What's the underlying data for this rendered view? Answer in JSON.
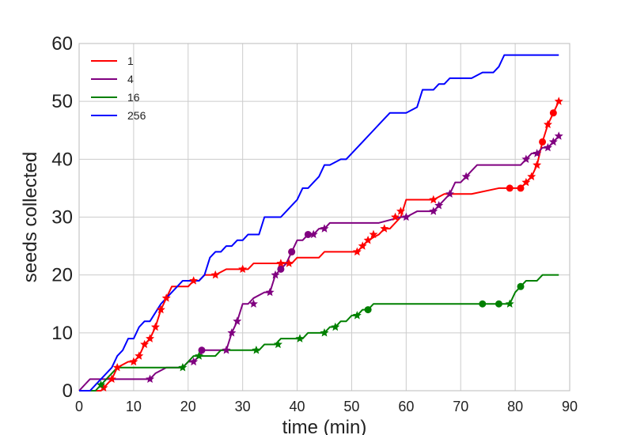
{
  "chart_data": {
    "type": "line",
    "title": "",
    "xlabel": "time (min)",
    "ylabel": "seeds collected",
    "xlim": [
      0,
      90
    ],
    "ylim": [
      0,
      60
    ],
    "xticks": [
      0,
      10,
      20,
      30,
      40,
      50,
      60,
      70,
      80,
      90
    ],
    "yticks": [
      0,
      10,
      20,
      30,
      40,
      50,
      60
    ],
    "grid": true,
    "legend_position": "top-left",
    "series": [
      {
        "name": "1",
        "color": "#ff0000",
        "x": [
          0,
          2,
          4,
          5,
          6,
          7,
          9,
          10,
          11,
          12,
          13,
          14,
          15,
          16,
          17,
          20,
          21,
          22,
          23,
          25,
          27,
          30,
          31,
          32,
          37,
          38,
          39,
          40,
          42,
          44,
          45,
          48,
          50,
          51,
          52,
          53,
          55,
          56,
          57,
          58,
          59,
          60,
          64,
          65,
          67,
          70,
          72,
          77,
          79,
          80,
          81,
          82,
          83,
          84,
          85,
          86,
          87,
          88
        ],
        "y": [
          0,
          0,
          0,
          1,
          2,
          4,
          5,
          5,
          6,
          8,
          9,
          11,
          14,
          16,
          18,
          18,
          19,
          19,
          20,
          20,
          21,
          21,
          21,
          22,
          22,
          22,
          22,
          23,
          23,
          23,
          24,
          24,
          24,
          24,
          25,
          26,
          27,
          28,
          28,
          29,
          30,
          33,
          33,
          33,
          34,
          34,
          34,
          35,
          35,
          35,
          35,
          36,
          37,
          39,
          43,
          46,
          48,
          50
        ],
        "markers": [
          {
            "x": 4.5,
            "y": 0.5,
            "shape": "star"
          },
          {
            "x": 6,
            "y": 2,
            "shape": "star"
          },
          {
            "x": 7,
            "y": 4,
            "shape": "star"
          },
          {
            "x": 10,
            "y": 5,
            "shape": "star"
          },
          {
            "x": 11,
            "y": 6,
            "shape": "star"
          },
          {
            "x": 12,
            "y": 8,
            "shape": "star"
          },
          {
            "x": 13,
            "y": 9,
            "shape": "star"
          },
          {
            "x": 14,
            "y": 11,
            "shape": "star"
          },
          {
            "x": 15,
            "y": 14,
            "shape": "star"
          },
          {
            "x": 16,
            "y": 16,
            "shape": "star"
          },
          {
            "x": 21,
            "y": 19,
            "shape": "star"
          },
          {
            "x": 25,
            "y": 20,
            "shape": "star"
          },
          {
            "x": 30,
            "y": 21,
            "shape": "star"
          },
          {
            "x": 37,
            "y": 22,
            "shape": "star"
          },
          {
            "x": 38.5,
            "y": 22,
            "shape": "star"
          },
          {
            "x": 39,
            "y": 24,
            "shape": "circle"
          },
          {
            "x": 51,
            "y": 24,
            "shape": "star"
          },
          {
            "x": 52,
            "y": 25,
            "shape": "star"
          },
          {
            "x": 53,
            "y": 26,
            "shape": "star"
          },
          {
            "x": 54,
            "y": 27,
            "shape": "star"
          },
          {
            "x": 56,
            "y": 28,
            "shape": "star"
          },
          {
            "x": 58,
            "y": 30,
            "shape": "star"
          },
          {
            "x": 59,
            "y": 31,
            "shape": "star"
          },
          {
            "x": 65,
            "y": 33,
            "shape": "star"
          },
          {
            "x": 79,
            "y": 35,
            "shape": "circle"
          },
          {
            "x": 81,
            "y": 35,
            "shape": "circle"
          },
          {
            "x": 82,
            "y": 36,
            "shape": "star"
          },
          {
            "x": 83,
            "y": 37,
            "shape": "star"
          },
          {
            "x": 84,
            "y": 39,
            "shape": "star"
          },
          {
            "x": 85,
            "y": 43,
            "shape": "circle"
          },
          {
            "x": 86,
            "y": 46,
            "shape": "star"
          },
          {
            "x": 87,
            "y": 48,
            "shape": "circle"
          },
          {
            "x": 88,
            "y": 50,
            "shape": "star"
          }
        ]
      },
      {
        "name": "4",
        "color": "#800080",
        "x": [
          0,
          2,
          4,
          8,
          13,
          14,
          16,
          19,
          20,
          21,
          22,
          23,
          26,
          27,
          28,
          29,
          30,
          31,
          32,
          34,
          35,
          36,
          37,
          38,
          39,
          40,
          41,
          42,
          43,
          44,
          45,
          46,
          50,
          55,
          59,
          60,
          62,
          64,
          65,
          66,
          67,
          68,
          69,
          70,
          71,
          72,
          73,
          74,
          76,
          80,
          81,
          82,
          83,
          84,
          85,
          86,
          87,
          88
        ],
        "y": [
          0,
          2,
          2,
          2,
          2,
          3,
          4,
          4,
          5,
          5,
          6,
          7,
          7,
          7,
          10,
          12,
          15,
          15,
          16,
          17,
          17,
          20,
          21,
          22,
          24,
          26,
          26,
          27,
          27,
          28,
          28,
          29,
          29,
          29,
          30,
          30,
          31,
          31,
          31,
          32,
          33,
          34,
          36,
          36,
          37,
          38,
          39,
          39,
          39,
          39,
          39,
          40,
          41,
          41,
          42,
          42,
          43,
          44
        ],
        "markers": [
          {
            "x": 13,
            "y": 2,
            "shape": "star"
          },
          {
            "x": 21,
            "y": 5,
            "shape": "star"
          },
          {
            "x": 22.5,
            "y": 7,
            "shape": "circle"
          },
          {
            "x": 27,
            "y": 7,
            "shape": "star"
          },
          {
            "x": 28,
            "y": 10,
            "shape": "star"
          },
          {
            "x": 29,
            "y": 12,
            "shape": "star"
          },
          {
            "x": 32,
            "y": 15,
            "shape": "star"
          },
          {
            "x": 35,
            "y": 17,
            "shape": "star"
          },
          {
            "x": 36,
            "y": 20,
            "shape": "star"
          },
          {
            "x": 37,
            "y": 21,
            "shape": "circle"
          },
          {
            "x": 39,
            "y": 24,
            "shape": "circle"
          },
          {
            "x": 42,
            "y": 27,
            "shape": "circle"
          },
          {
            "x": 43,
            "y": 27,
            "shape": "star"
          },
          {
            "x": 45,
            "y": 28,
            "shape": "star"
          },
          {
            "x": 60,
            "y": 30,
            "shape": "star"
          },
          {
            "x": 65,
            "y": 31,
            "shape": "star"
          },
          {
            "x": 66,
            "y": 32,
            "shape": "star"
          },
          {
            "x": 68,
            "y": 34,
            "shape": "star"
          },
          {
            "x": 71,
            "y": 37,
            "shape": "star"
          },
          {
            "x": 82,
            "y": 40,
            "shape": "star"
          },
          {
            "x": 84,
            "y": 41,
            "shape": "star"
          },
          {
            "x": 86,
            "y": 42,
            "shape": "star"
          },
          {
            "x": 87,
            "y": 43,
            "shape": "star"
          },
          {
            "x": 88,
            "y": 44,
            "shape": "star"
          }
        ]
      },
      {
        "name": "16",
        "color": "#008000",
        "x": [
          0,
          2,
          3,
          4,
          5,
          6,
          7,
          8,
          10,
          12,
          15,
          17,
          19,
          20,
          21,
          22,
          23,
          25,
          26,
          27,
          32,
          33,
          34,
          35,
          36,
          37,
          38,
          39,
          40,
          41,
          42,
          43,
          44,
          45,
          46,
          47,
          48,
          49,
          50,
          51,
          52,
          53,
          54,
          55,
          60,
          70,
          74,
          77,
          79,
          80,
          81,
          82,
          83,
          84,
          85,
          86,
          88
        ],
        "y": [
          0,
          0,
          0,
          1,
          2,
          3,
          4,
          4,
          4,
          4,
          4,
          4,
          4,
          5,
          6,
          6,
          6,
          6,
          7,
          7,
          7,
          7,
          8,
          8,
          8,
          9,
          9,
          9,
          9,
          9,
          10,
          10,
          10,
          10,
          11,
          11,
          12,
          12,
          13,
          13,
          14,
          14,
          15,
          15,
          15,
          15,
          15,
          15,
          15,
          17,
          18,
          19,
          19,
          19,
          20,
          20,
          20
        ],
        "markers": [
          {
            "x": 4,
            "y": 1,
            "shape": "star"
          },
          {
            "x": 19,
            "y": 4,
            "shape": "star"
          },
          {
            "x": 22,
            "y": 6,
            "shape": "star"
          },
          {
            "x": 32.5,
            "y": 7,
            "shape": "star"
          },
          {
            "x": 36.5,
            "y": 8,
            "shape": "star"
          },
          {
            "x": 40.5,
            "y": 9,
            "shape": "star"
          },
          {
            "x": 45,
            "y": 10,
            "shape": "star"
          },
          {
            "x": 47,
            "y": 11,
            "shape": "star"
          },
          {
            "x": 51,
            "y": 13,
            "shape": "star"
          },
          {
            "x": 53,
            "y": 14,
            "shape": "circle"
          },
          {
            "x": 74,
            "y": 15,
            "shape": "circle"
          },
          {
            "x": 77,
            "y": 15,
            "shape": "circle"
          },
          {
            "x": 79,
            "y": 15,
            "shape": "star"
          },
          {
            "x": 81,
            "y": 18,
            "shape": "circle"
          }
        ]
      },
      {
        "name": "256",
        "color": "#0000ff",
        "x": [
          0,
          2,
          3,
          5,
          6,
          7,
          8,
          9,
          10,
          11,
          12,
          13,
          15,
          16,
          17,
          18,
          19,
          20,
          21,
          22,
          23,
          24,
          25,
          26,
          27,
          28,
          29,
          30,
          31,
          32,
          33,
          34,
          35,
          36,
          37,
          38,
          39,
          40,
          41,
          42,
          43,
          44,
          45,
          46,
          48,
          49,
          50,
          52,
          54,
          56,
          57,
          58,
          59,
          60,
          62,
          63,
          64,
          65,
          66,
          67,
          68,
          69,
          70,
          72,
          74,
          75,
          76,
          77,
          78,
          79,
          80,
          88
        ],
        "y": [
          0,
          0,
          1,
          3,
          4,
          6,
          7,
          9,
          9,
          11,
          12,
          12,
          15,
          16,
          17,
          18,
          19,
          19,
          19,
          19,
          20,
          23,
          24,
          24,
          25,
          25,
          26,
          26,
          27,
          27,
          27,
          30,
          30,
          30,
          30,
          31,
          32,
          33,
          35,
          35,
          36,
          37,
          39,
          39,
          40,
          40,
          41,
          43,
          45,
          47,
          48,
          48,
          48,
          48,
          49,
          52,
          52,
          52,
          53,
          53,
          54,
          54,
          54,
          54,
          55,
          55,
          55,
          56,
          58,
          58,
          58,
          58
        ],
        "markers": []
      }
    ]
  }
}
